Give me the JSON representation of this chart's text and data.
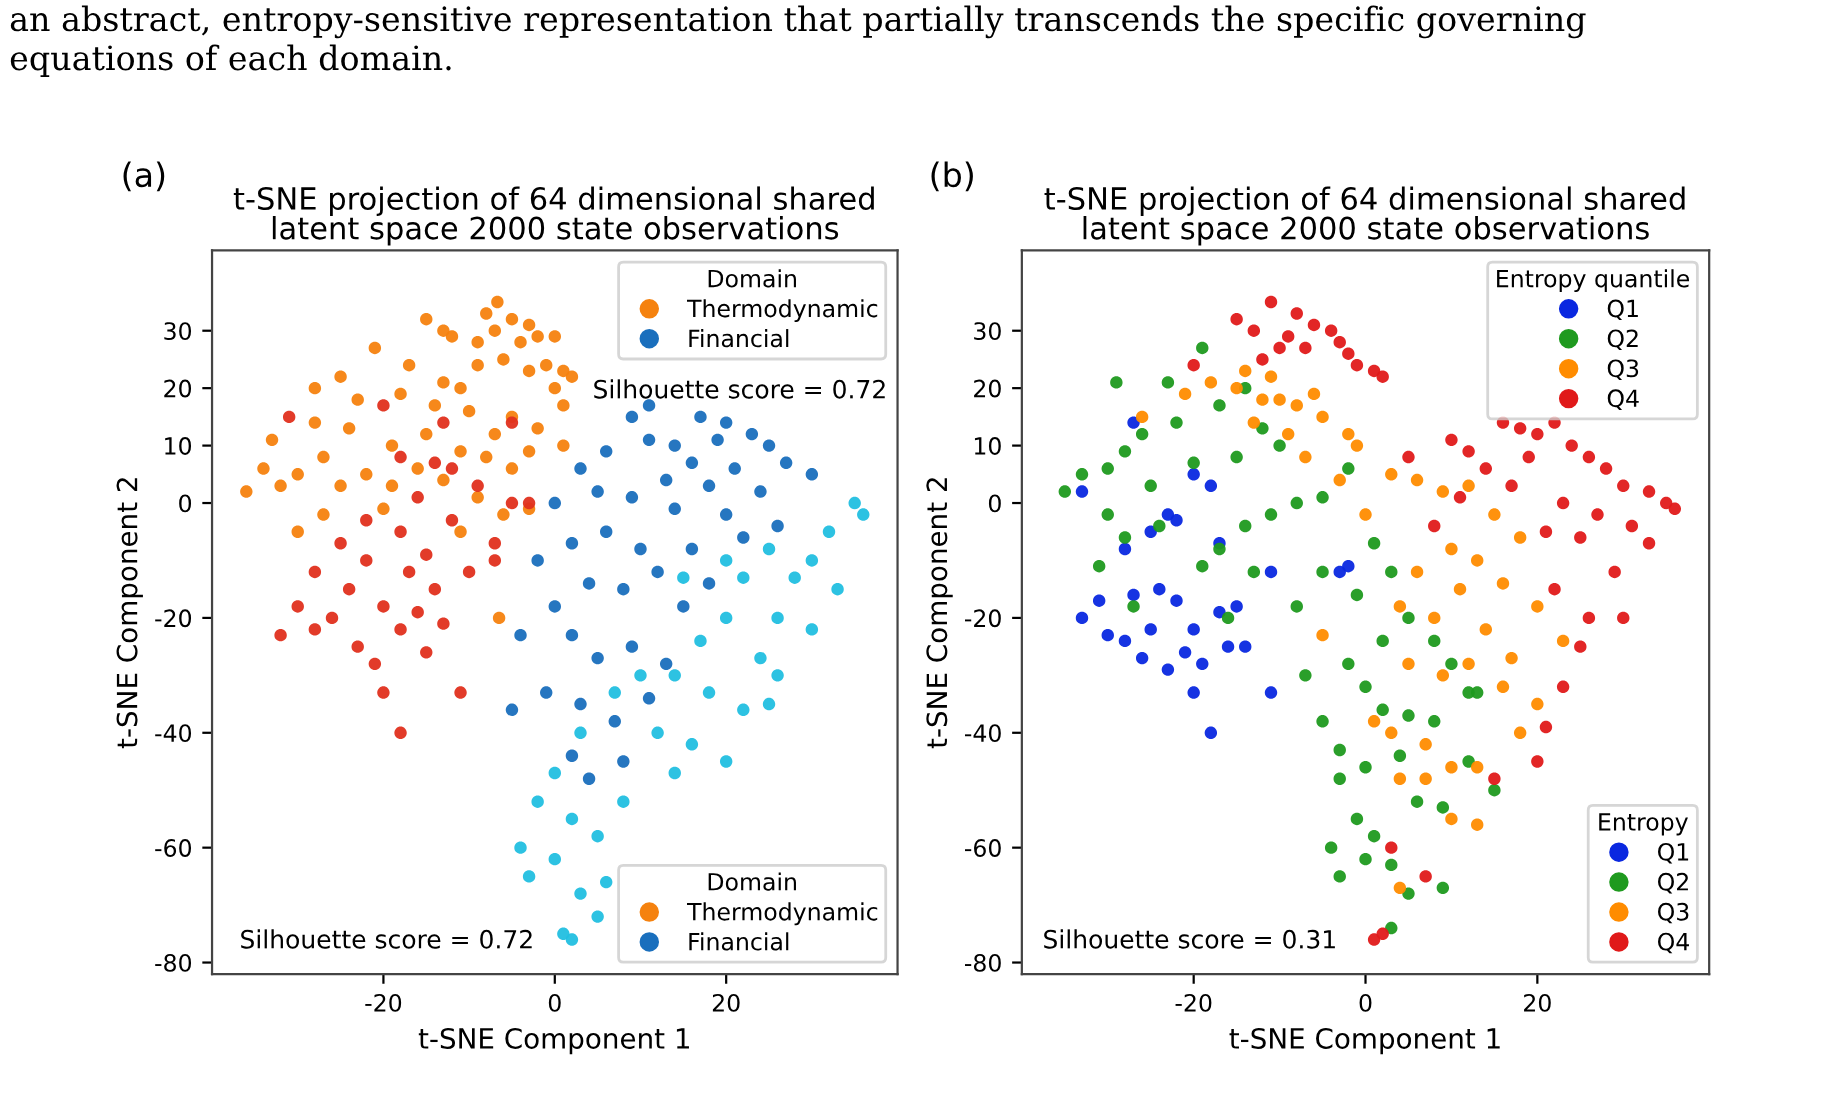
{
  "chart_data": [
    {
      "type": "scatter",
      "title": "t-SNE projection of 64 dimensional shared\nlatent space 2000 state observations",
      "xlabel": "t-SNE Component 1",
      "ylabel": "t-SNE Component 2",
      "xlim": [
        -40,
        40
      ],
      "ylim": [
        -82,
        44
      ],
      "xticks": [
        -20,
        0,
        20
      ],
      "yticks": [
        -80,
        -60,
        -40,
        -20,
        0,
        10,
        20,
        30
      ],
      "grid": false,
      "marker": "circle",
      "legend": [
        "top right",
        "bottom right"
      ],
      "legend_title": [
        "Domain",
        "Domain"
      ],
      "annotations": [
        "(a)",
        "Silhouette score = 0.72",
        "Silhouette score = 0.72",
        "an abstract, entropy-sensitive representation that partially transcends the specific governing\nequations of each domain."
      ],
      "series": [
        {
          "name": "Thermodynamic",
          "color": "#f5820f",
          "x": [
            -6.7,
            -8,
            -5,
            -3,
            -7,
            -2,
            -4,
            0,
            -9,
            -12,
            -13,
            -15,
            1,
            2,
            0,
            -1,
            -3,
            -6,
            -9,
            -13,
            -17,
            -21,
            -25,
            -28,
            -23,
            -18,
            -14,
            -10,
            -5,
            -2,
            1,
            -7,
            -11,
            -15,
            -19,
            -24,
            -28,
            -33,
            -34,
            -32,
            -36,
            -30,
            -27,
            -25,
            -22,
            -19,
            -16,
            -13,
            -9,
            -6,
            -3,
            -11,
            -30,
            -27,
            -20,
            -6.5,
            -5,
            -8,
            -3,
            1,
            -11
          ],
          "values": [
            35,
            33,
            32,
            31,
            30,
            29,
            28,
            29,
            28,
            29,
            30,
            32,
            23,
            22,
            20,
            24,
            23,
            25,
            24,
            21,
            24,
            27,
            22,
            20,
            18,
            19,
            17,
            16,
            15,
            13,
            17,
            12,
            9,
            12,
            10,
            13,
            14,
            11,
            6,
            3,
            2,
            5,
            8,
            3,
            5,
            3,
            6,
            4,
            1,
            -2,
            -1,
            -5,
            -5,
            -2,
            -1,
            -20,
            6,
            8,
            9,
            10,
            20
          ]
        },
        {
          "color": "#e0301e",
          "x": [
            -31,
            -20,
            -13,
            -5,
            -18,
            -14,
            -9,
            -5,
            -3,
            -22,
            -25,
            -18,
            -15,
            -12,
            -28,
            -30,
            -32,
            -28,
            -24,
            -20,
            -23,
            -21,
            -18,
            -17,
            -14,
            -10,
            -7,
            -15,
            -20,
            -18,
            -11,
            -26,
            -22,
            -16,
            -13,
            -7,
            -12,
            -16
          ],
          "values": [
            15,
            17,
            14,
            14,
            8,
            7,
            3,
            0,
            0,
            -3,
            -7,
            -5,
            -9,
            -3,
            -12,
            -18,
            -23,
            -22,
            -15,
            -18,
            -25,
            -28,
            -22,
            -12,
            -15,
            -12,
            -10,
            -26,
            -33,
            -40,
            -33,
            -20,
            -10,
            -19,
            -21,
            -7,
            6,
            1
          ]
        },
        {
          "name": "Financial",
          "color": "#1a6fbd",
          "x": [
            11,
            9,
            17,
            20,
            23,
            19,
            25,
            14,
            11,
            6,
            16,
            21,
            27,
            30,
            13,
            18,
            24,
            3,
            5,
            9,
            14,
            20,
            0,
            -2,
            2,
            6,
            10,
            16,
            22,
            26,
            4,
            8,
            12,
            15,
            18,
            0,
            -4,
            2,
            5,
            9,
            13,
            -5,
            -1,
            3,
            7,
            11,
            4,
            8,
            2
          ],
          "values": [
            17,
            15,
            15,
            14,
            12,
            11,
            10,
            10,
            11,
            9,
            7,
            6,
            7,
            5,
            4,
            3,
            2,
            6,
            2,
            1,
            -1,
            -2,
            0,
            -10,
            -7,
            -5,
            -8,
            -8,
            -6,
            -4,
            -14,
            -15,
            -12,
            -18,
            -14,
            -18,
            -23,
            -23,
            -27,
            -25,
            -28,
            -36,
            -33,
            -35,
            -38,
            -34,
            -48,
            -45,
            -44
          ]
        },
        {
          "color": "#22bfe0",
          "x": [
            36,
            35,
            32,
            30,
            28,
            33,
            25,
            22,
            26,
            20,
            17,
            24,
            30,
            14,
            18,
            22,
            26,
            10,
            7,
            12,
            16,
            20,
            25,
            3,
            0,
            -2,
            2,
            5,
            8,
            14,
            -4,
            -3,
            0,
            3,
            6,
            1,
            2,
            5,
            20,
            15
          ],
          "values": [
            -2,
            0,
            -5,
            -10,
            -13,
            -15,
            -8,
            -13,
            -20,
            -20,
            -24,
            -27,
            -22,
            -30,
            -33,
            -36,
            -30,
            -30,
            -33,
            -40,
            -42,
            -45,
            -35,
            -40,
            -47,
            -52,
            -55,
            -58,
            -52,
            -47,
            -60,
            -65,
            -62,
            -68,
            -66,
            -75,
            -76,
            -72,
            -10,
            -13
          ]
        }
      ]
    },
    {
      "type": "scatter",
      "title": "t-SNE projection of 64 dimensional shared\nlatent space 2000 state observations",
      "xlabel": "t-SNE Component 1",
      "ylabel": "t-SNE Component 2",
      "xlim": [
        -40,
        40
      ],
      "ylim": [
        -82,
        44
      ],
      "xticks": [
        -20,
        0,
        20
      ],
      "yticks": [
        -80,
        -60,
        -40,
        -20,
        0,
        10,
        20,
        30
      ],
      "grid": false,
      "marker": "circle",
      "legend": [
        "top right",
        "bottom right"
      ],
      "legend_title": [
        "Entropy quantile",
        "Entropy"
      ],
      "annotations": [
        "(b)",
        "Silhouette score = 0.31"
      ],
      "series": [
        {
          "name": "Q1",
          "color": "#0a28e0",
          "x": [
            -33,
            -27,
            -25,
            -22,
            -20,
            -18,
            -17,
            -23,
            -28,
            -31,
            -33,
            -27,
            -25,
            -22,
            -20,
            -17,
            -15,
            -21,
            -23,
            -19,
            -16,
            -20,
            -18,
            -11,
            -14,
            -3,
            -2,
            -11,
            -24,
            -28,
            -30,
            -26
          ],
          "values": [
            2,
            14,
            -5,
            -3,
            5,
            3,
            -7,
            -2,
            -8,
            -17,
            -20,
            -16,
            -22,
            -17,
            -22,
            -19,
            -18,
            -26,
            -29,
            -28,
            -25,
            -33,
            -40,
            -33,
            -25,
            -12,
            -11,
            -12,
            -15,
            -24,
            -23,
            -27
          ]
        },
        {
          "name": "Q2",
          "color": "#1f9a1f",
          "x": [
            -35,
            -33,
            -30,
            -28,
            -26,
            -22,
            -17,
            -14,
            -23,
            -29,
            -19,
            -12,
            -10,
            -15,
            -20,
            -25,
            -30,
            -28,
            -24,
            -17,
            -14,
            -11,
            -8,
            -5,
            -13,
            -19,
            -16,
            -8,
            -5,
            -2,
            1,
            3,
            -1,
            2,
            5,
            8,
            10,
            12,
            -2,
            -7,
            0,
            2,
            5,
            8,
            13,
            -5,
            -3,
            0,
            4,
            6,
            9,
            12,
            15,
            -3,
            -1,
            1,
            3,
            -4,
            -3,
            0,
            5,
            9,
            3,
            -27,
            -31
          ],
          "values": [
            2,
            5,
            6,
            9,
            12,
            14,
            17,
            20,
            21,
            21,
            27,
            13,
            10,
            8,
            7,
            3,
            -2,
            -6,
            -4,
            -8,
            -4,
            -2,
            0,
            1,
            -12,
            -11,
            -20,
            -18,
            -12,
            6,
            -7,
            -12,
            -16,
            -24,
            -20,
            -24,
            -28,
            -33,
            -28,
            -30,
            -32,
            -36,
            -37,
            -38,
            -33,
            -38,
            -43,
            -46,
            -44,
            -52,
            -53,
            -45,
            -50,
            -48,
            -55,
            -58,
            -63,
            -60,
            -65,
            -62,
            -68,
            -67,
            -74,
            -18,
            -11
          ]
        },
        {
          "name": "Q3",
          "color": "#ff8c00",
          "x": [
            -18,
            -15,
            -10,
            -6,
            -13,
            -9,
            -5,
            -2,
            -7,
            -3,
            -8,
            -14,
            -11,
            -26,
            -21,
            -12,
            -1,
            3,
            6,
            9,
            12,
            15,
            18,
            13,
            10,
            6,
            4,
            8,
            11,
            16,
            20,
            14,
            17,
            12,
            9,
            5,
            1,
            3,
            7,
            10,
            13,
            18,
            20,
            4,
            7,
            10,
            13,
            4,
            -5,
            0,
            16,
            23
          ],
          "values": [
            21,
            20,
            18,
            19,
            14,
            12,
            15,
            12,
            8,
            4,
            17,
            23,
            22,
            15,
            19,
            18,
            10,
            5,
            4,
            2,
            3,
            -2,
            -6,
            -10,
            -8,
            -12,
            -18,
            -20,
            -15,
            -14,
            -18,
            -22,
            -27,
            -28,
            -30,
            -28,
            -38,
            -40,
            -42,
            -46,
            -46,
            -40,
            -35,
            -48,
            -48,
            -55,
            -56,
            -67,
            -23,
            -2,
            -32,
            -24
          ]
        },
        {
          "name": "Q4",
          "color": "#e01a1a",
          "x": [
            -11,
            -8,
            -6,
            -4,
            -9,
            -3,
            -13,
            -15,
            -7,
            -2,
            1,
            2,
            -1,
            -10,
            -20,
            -12,
            16,
            18,
            20,
            22,
            24,
            19,
            26,
            28,
            30,
            33,
            35,
            36,
            31,
            33,
            27,
            23,
            25,
            21,
            17,
            14,
            12,
            10,
            5,
            29,
            26,
            22,
            25,
            30,
            23,
            21,
            20,
            15,
            7,
            1,
            2,
            11,
            8,
            3
          ],
          "values": [
            35,
            33,
            31,
            30,
            29,
            28,
            30,
            32,
            27,
            26,
            23,
            22,
            24,
            27,
            24,
            25,
            14,
            13,
            12,
            14,
            10,
            8,
            8,
            6,
            3,
            2,
            0,
            -1,
            -4,
            -7,
            -2,
            0,
            -6,
            -5,
            3,
            6,
            9,
            11,
            8,
            -12,
            -20,
            -15,
            -25,
            -20,
            -32,
            -39,
            -45,
            -48,
            -65,
            -76,
            -75,
            1,
            -4,
            -60
          ]
        }
      ]
    }
  ]
}
